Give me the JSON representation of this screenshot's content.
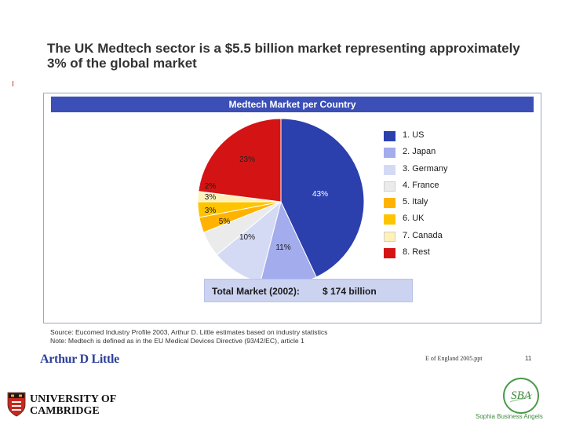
{
  "slide": {
    "headline_line1": "The UK Medtech sector is a $5.5 billion market representing approximately",
    "headline_line2": "3% of the global market"
  },
  "chart_data": {
    "type": "pie",
    "title": "Medtech Market per Country",
    "slices": [
      {
        "label": "1. US",
        "value": 43,
        "value_label": "43%",
        "color": "#2b3fad"
      },
      {
        "label": "2. Japan",
        "value": 11,
        "value_label": "11%",
        "color": "#a3acec"
      },
      {
        "label": "3. Germany",
        "value": 10,
        "value_label": "10%",
        "color": "#d5daf4"
      },
      {
        "label": "4. France",
        "value": 5,
        "value_label": "5%",
        "color": "#ebebeb"
      },
      {
        "label": "5. Italy",
        "value": 3,
        "value_label": "3%",
        "color": "#ffb300"
      },
      {
        "label": "6. UK",
        "value": 3,
        "value_label": "3%",
        "color": "#ffc400"
      },
      {
        "label": "7. Canada",
        "value": 2,
        "value_label": "2%",
        "color": "#fff1b8"
      },
      {
        "label": "8. Rest",
        "value": 23,
        "value_label": "23%",
        "color": "#d41414"
      }
    ],
    "legend_position": "right",
    "total_label": "Total Market (2002):",
    "total_value": "$ 174 billion"
  },
  "source": {
    "line1": "Source: Eucomed Industry Profile 2003, Arthur D. Little estimates based on industry statistics",
    "line2": "Note: Medtech is defined as in the EU Medical Devices Directive (93/42/EC), article 1"
  },
  "footer": {
    "logo_text": "Arthur D Little",
    "file": "E of England 2005.ppt",
    "page": "11"
  },
  "university": {
    "line1": "UNIVERSITY OF",
    "line2": "CAMBRIDGE"
  },
  "sba": {
    "logo_text": "SBA",
    "caption": "Sophia Business Angels"
  }
}
